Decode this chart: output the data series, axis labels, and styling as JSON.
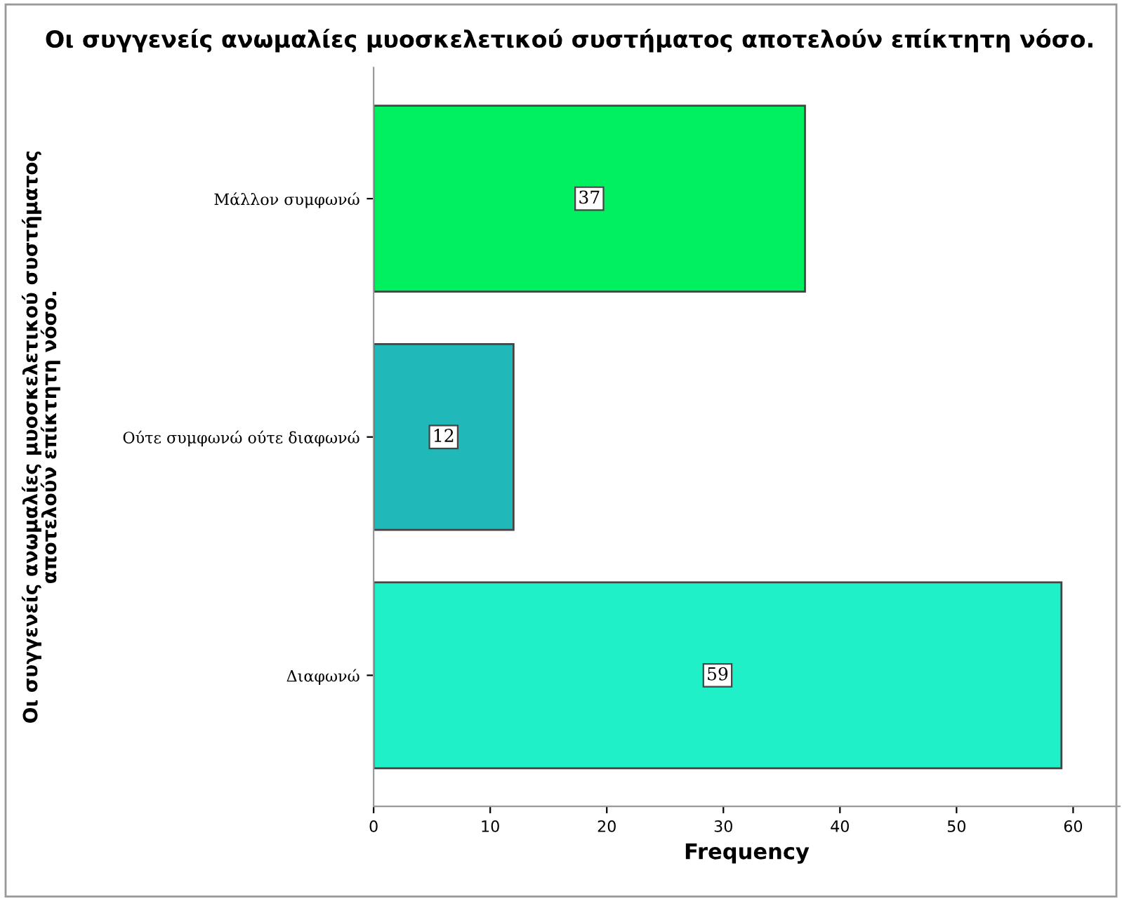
{
  "chart_data": {
    "type": "bar",
    "orientation": "horizontal",
    "title": "Οι συγγενείς ανωμαλίες μυοσκελετικού συστήματος αποτελούν επίκτητη νόσο.",
    "xlabel": "Frequency",
    "ylabel": "Οι συγγενείς ανωμαλίες μυοσκελετικού συστήματος\nαποτελούν επίκτητη νόσο.",
    "categories": [
      "Μάλλον συμφωνώ",
      "Ούτε συμφωνώ ούτε διαφωνώ",
      "Διαφωνώ"
    ],
    "values": [
      37,
      12,
      59
    ],
    "colors": [
      "#00f060",
      "#20b8b8",
      "#20f0c8"
    ],
    "xlim": [
      0,
      64
    ],
    "xticks": [
      0,
      10,
      20,
      30,
      40,
      50,
      60
    ],
    "data_labels": true,
    "grid": false,
    "legend": false
  }
}
